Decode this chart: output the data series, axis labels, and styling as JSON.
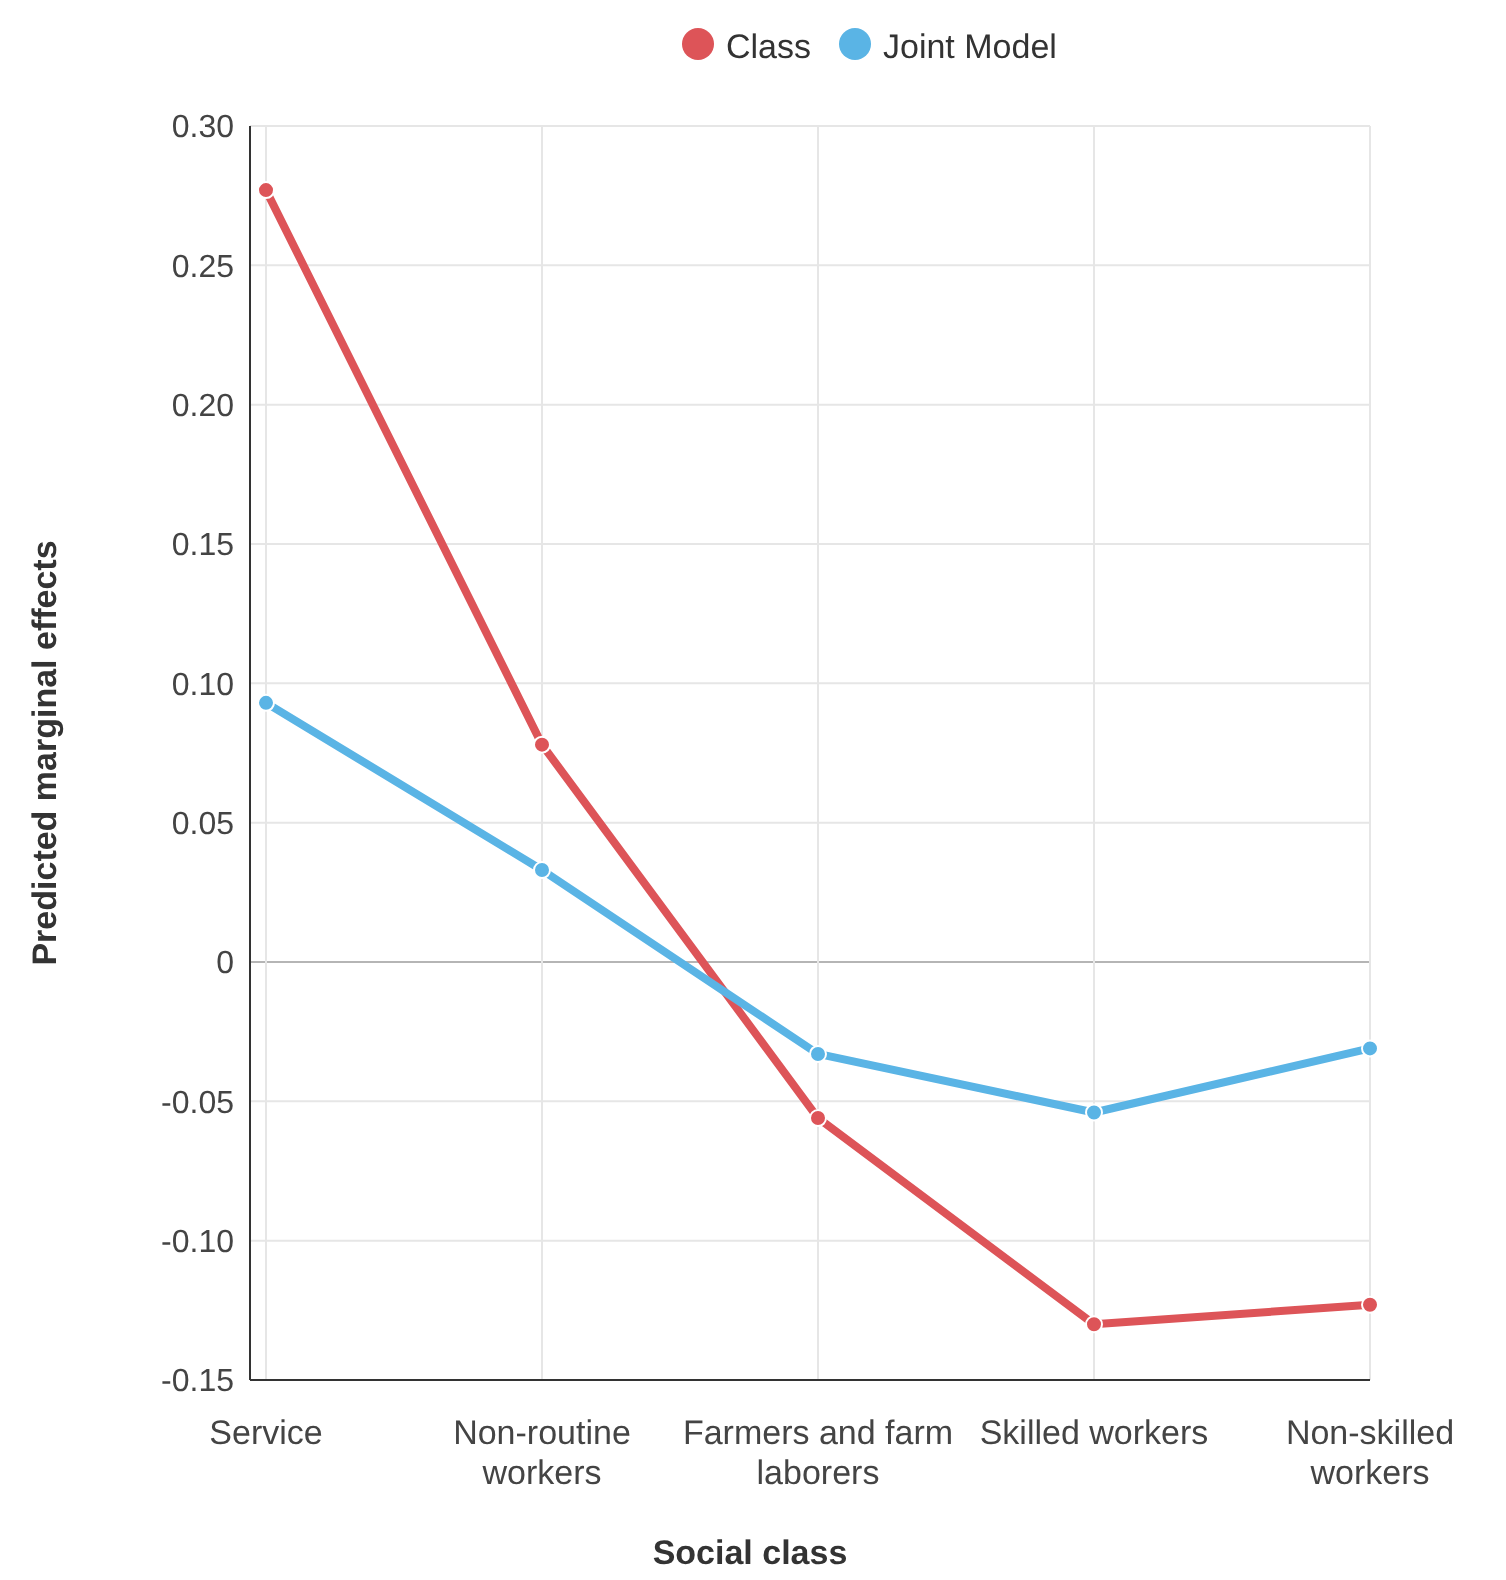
{
  "chart_data": {
    "type": "line",
    "xlabel": "Social class",
    "ylabel": "Predicted marginal effects",
    "categories": [
      "Service",
      "Non-routine workers",
      "Farmers and farm laborers",
      "Skilled workers",
      "Non-skilled workers"
    ],
    "series": [
      {
        "name": "Class",
        "color": "#dd5458",
        "values": [
          0.277,
          0.078,
          -0.056,
          -0.13,
          -0.123
        ]
      },
      {
        "name": "Joint Model",
        "color": "#5ab4e5",
        "values": [
          0.093,
          0.033,
          -0.033,
          -0.054,
          -0.031
        ]
      }
    ],
    "ylim": [
      -0.15,
      0.3
    ],
    "yticks": [
      {
        "value": -0.15,
        "label": "-0.15"
      },
      {
        "value": -0.1,
        "label": "-0.10"
      },
      {
        "value": -0.05,
        "label": "-0.05"
      },
      0,
      {
        "value": 0.05,
        "label": "0.05"
      },
      {
        "value": 0.1,
        "label": "0.10"
      },
      {
        "value": 0.15,
        "label": "0.15"
      },
      {
        "value": 0.2,
        "label": "0.20"
      },
      {
        "value": 0.25,
        "label": "0.25"
      },
      {
        "value": 0.3,
        "label": "0.30"
      }
    ],
    "grid": true,
    "legend": "top",
    "marker": "circle",
    "line_style": "solid"
  }
}
